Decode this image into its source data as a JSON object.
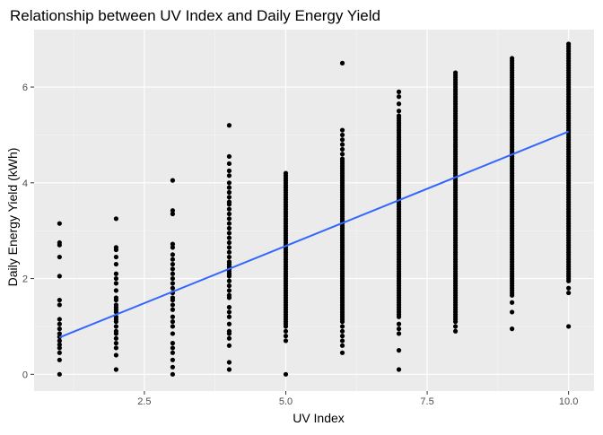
{
  "chart_data": {
    "type": "scatter",
    "title": "Relationship between UV Index and Daily Energy Yield",
    "xlabel": "UV Index",
    "ylabel": "Daily Energy Yield (kWh)",
    "xlim": [
      0.55,
      10.45
    ],
    "ylim": [
      -0.35,
      7.2
    ],
    "x_ticks": [
      2.5,
      5.0,
      7.5,
      10.0
    ],
    "x_tick_labels": [
      "2.5",
      "5.0",
      "7.5",
      "10.0"
    ],
    "y_ticks": [
      0,
      2,
      4,
      6
    ],
    "y_tick_labels": [
      "0",
      "2",
      "4",
      "6"
    ],
    "grid": true,
    "legend": "none",
    "colors": {
      "panel": "#ebebeb",
      "grid_major": "#ffffff",
      "grid_minor": "#f5f5f5",
      "points": "#000000",
      "trend": "#3366ff"
    },
    "series": [
      {
        "type": "scatter",
        "points": {
          "1": [
            0.0,
            0.3,
            0.45,
            0.55,
            0.62,
            0.7,
            0.78,
            0.85,
            0.95,
            1.05,
            1.15,
            1.45,
            1.55,
            2.05,
            2.45,
            2.7,
            2.75,
            3.15
          ],
          "2": [
            0.1,
            0.4,
            0.55,
            0.65,
            0.75,
            0.85,
            0.9,
            1.0,
            1.1,
            1.15,
            1.2,
            1.3,
            1.35,
            1.4,
            1.45,
            1.55,
            1.6,
            1.75,
            1.9,
            2.0,
            2.1,
            2.3,
            2.45,
            2.6,
            2.65,
            3.25
          ],
          "3": [
            0.0,
            0.15,
            0.3,
            0.45,
            0.55,
            0.65,
            0.85,
            1.0,
            1.1,
            1.2,
            1.35,
            1.45,
            1.55,
            1.6,
            1.7,
            1.8,
            1.9,
            2.0,
            2.1,
            2.2,
            2.3,
            2.4,
            2.5,
            2.65,
            2.72,
            3.35,
            3.42,
            4.05
          ],
          "4": [
            0.1,
            0.25,
            0.6,
            0.75,
            0.85,
            0.9,
            1.05,
            1.2,
            1.3,
            1.4,
            1.6,
            1.65,
            1.75,
            1.85,
            1.95,
            2.05,
            2.1,
            2.15,
            2.2,
            2.25,
            2.3,
            2.35,
            2.45,
            2.55,
            2.65,
            2.75,
            2.85,
            2.95,
            3.05,
            3.15,
            3.25,
            3.35,
            3.45,
            3.55,
            3.6,
            3.7,
            3.8,
            3.9,
            4.0,
            4.15,
            4.25,
            4.4,
            4.55,
            5.2
          ],
          "5": [
            0.0,
            0.7,
            0.8,
            0.9
          ],
          "6": [
            0.45,
            0.6,
            0.7,
            0.8,
            0.9,
            1.0,
            4.6,
            4.7,
            4.8,
            4.9,
            5.0,
            5.1,
            6.5
          ],
          "7": [
            0.1,
            0.5,
            0.85,
            0.95,
            1.05,
            5.5,
            5.65,
            5.8,
            5.9
          ],
          "8": [
            0.9,
            1.0
          ],
          "9": [
            0.95,
            1.3,
            1.5
          ],
          "10": [
            1.0,
            1.7,
            1.8
          ]
        },
        "dense_ranges": {
          "5": [
            1.0,
            4.2
          ],
          "6": [
            1.1,
            4.5
          ],
          "7": [
            1.2,
            5.4
          ],
          "8": [
            1.1,
            6.3
          ],
          "9": [
            1.65,
            6.6
          ],
          "10": [
            1.95,
            6.9
          ]
        }
      },
      {
        "type": "line",
        "x": [
          1,
          10
        ],
        "y": [
          0.77,
          5.07
        ]
      }
    ]
  }
}
